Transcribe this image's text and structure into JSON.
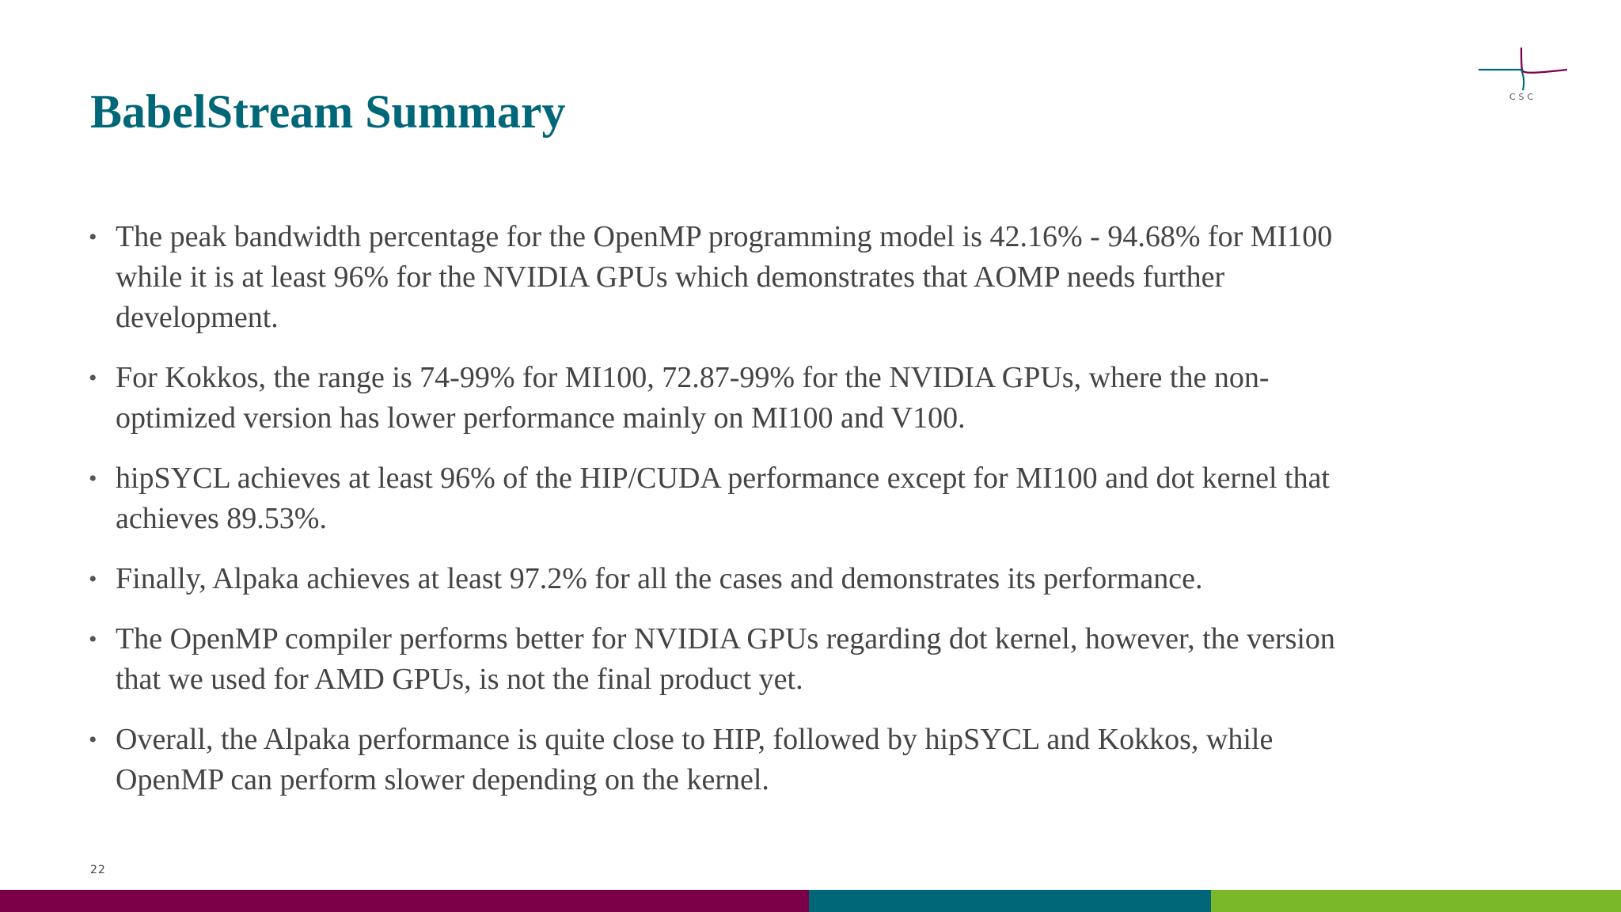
{
  "slide": {
    "title": "BabelStream Summary",
    "page_number": "22"
  },
  "logo": {
    "text": "CSC",
    "colors": {
      "teal": "#006778",
      "magenta": "#7b0048"
    }
  },
  "bullets": [
    {
      "text": "The peak bandwidth percentage for the OpenMP programming model is 42.16% - 94.68% for MI100 while it is at least 96% for the NVIDIA GPUs which demonstrates that AOMP needs further development."
    },
    {
      "text": "For Kokkos, the range is 74-99% for MI100, 72.87-99% for the NVIDIA GPUs, where the non-optimized version has lower performance mainly on MI100 and V100."
    },
    {
      "text": "hipSYCL achieves at least 96% of the HIP/CUDA performance except for MI100 and dot kernel that achieves 89.53%."
    },
    {
      "text": "Finally, Alpaka achieves at least 97.2% for all the cases and demonstrates its performance."
    },
    {
      "text": "The OpenMP compiler performs better for NVIDIA GPUs regarding dot kernel, however, the version that we used for AMD GPUs, is not the final product yet."
    },
    {
      "text": "Overall, the Alpaka performance is quite close to HIP, followed by hipSYCL and Kokkos, while OpenMP can perform slower depending on the kernel."
    }
  ],
  "bullet_glyph": "•",
  "theme": {
    "title_color": "#006778",
    "text_color": "#444444",
    "bar_colors": [
      "#7b0048",
      "#006778",
      "#7ab829"
    ]
  }
}
